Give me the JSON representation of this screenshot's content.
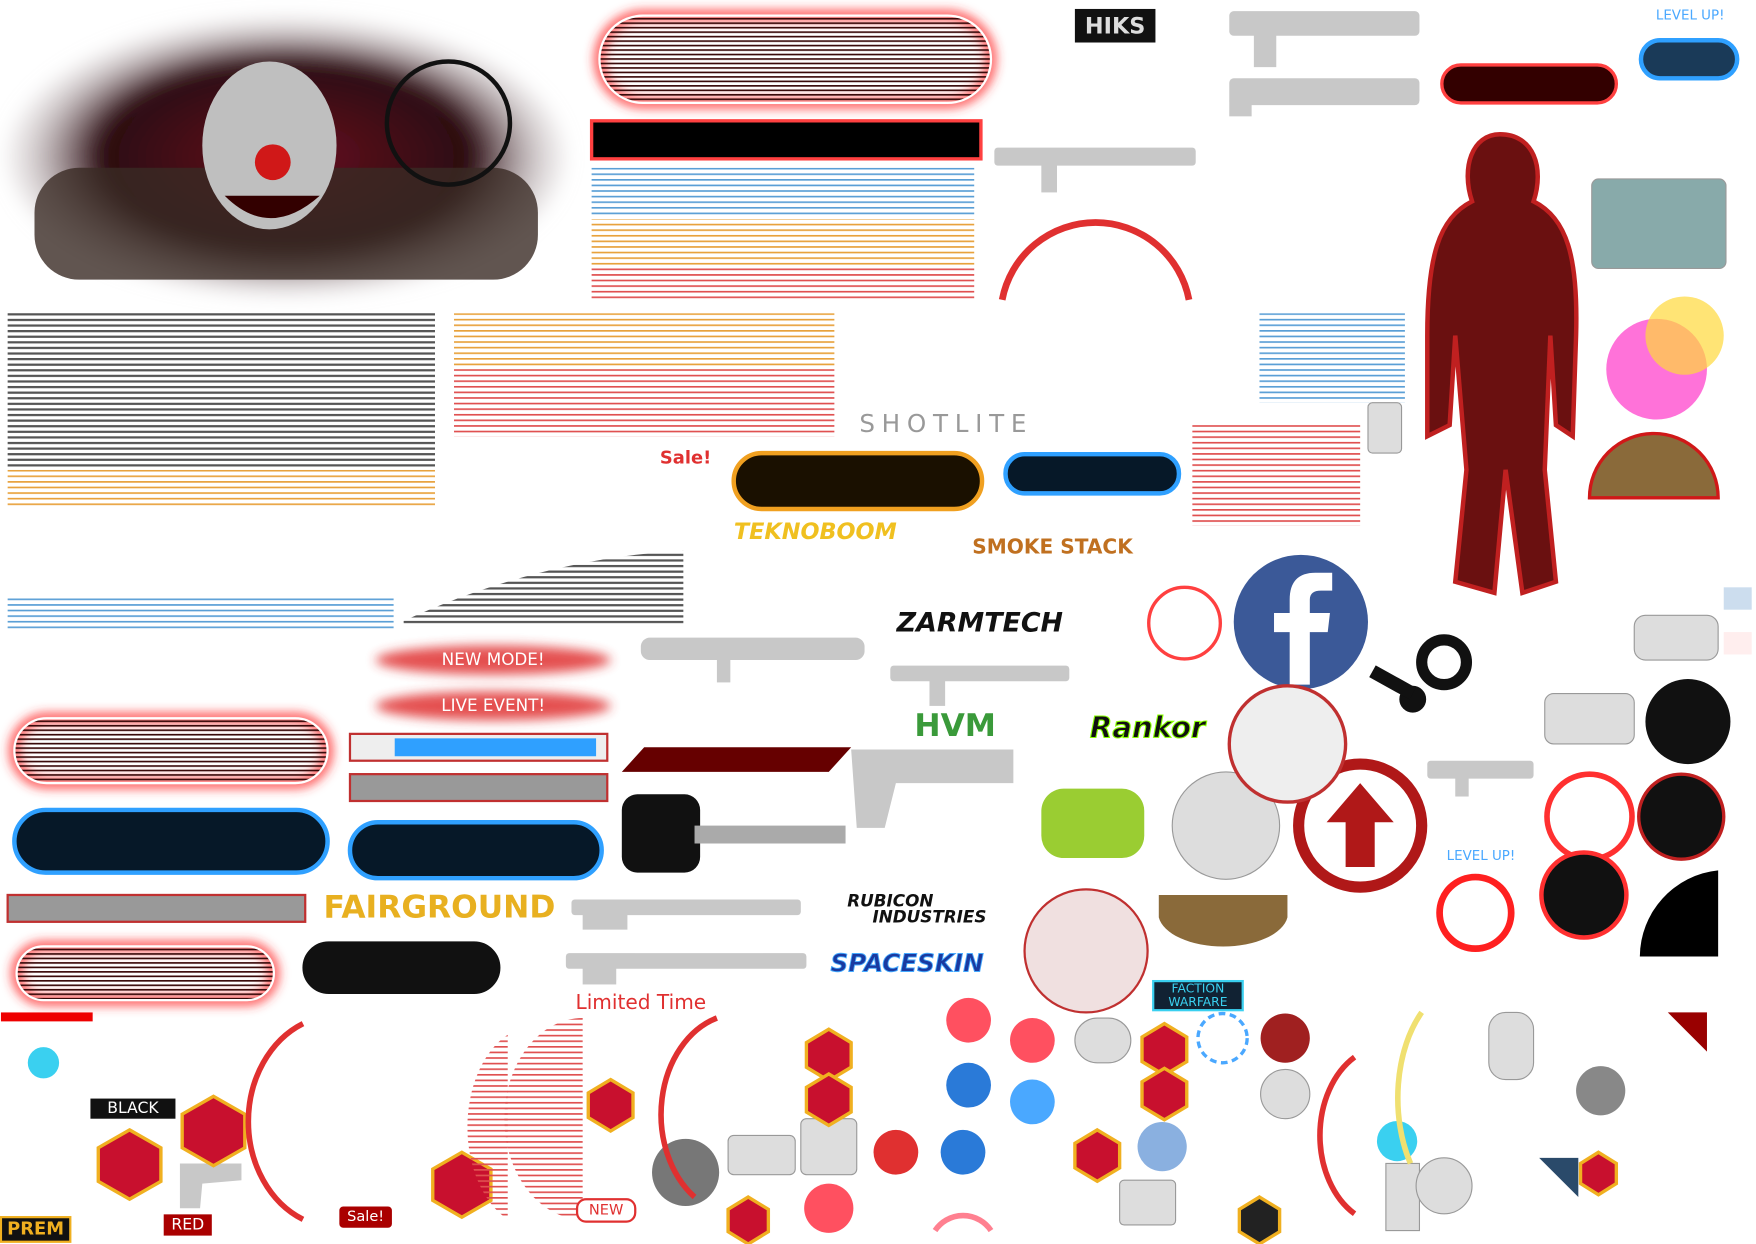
{
  "sprites": {
    "hiks": "HIKS",
    "level_up": "LEVEL UP!",
    "shotlite": "SHOTLITE",
    "sale": "Sale!",
    "teknoboom": "TEKNOBOOM",
    "smoke_stack": "SMOKE STACK",
    "zarmtech": "ZARMTECH",
    "new_mode": "NEW MODE!",
    "live_event": "LIVE EVENT!",
    "hvm": "HVM",
    "rankor": "Rankor",
    "fairground": "FAIRGROUND",
    "rubicon_1": "RUBICON",
    "rubicon_2": "INDUSTRIES",
    "spaceskin": "SPACESKIN",
    "level_up_2": "LEVEL UP!",
    "limited_time": "Limited Time",
    "faction_1": "FACTION",
    "faction_2": "WARFARE",
    "black": "BLACK",
    "prem": "PREM",
    "red": "RED",
    "sale_2": "Sale!",
    "new": "NEW"
  }
}
